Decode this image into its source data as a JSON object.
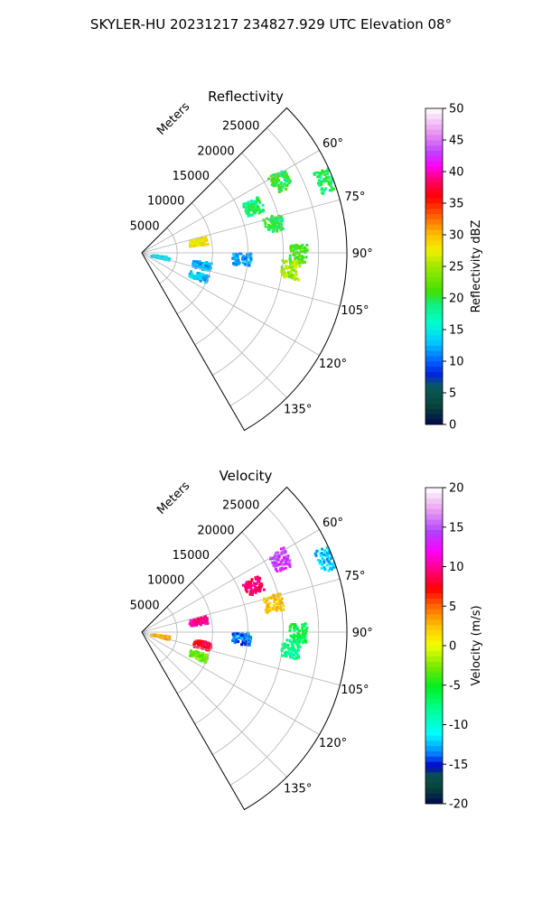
{
  "figure_title": "SKYLER-HU  20231217  234827.929 UTC Elevation 08°",
  "range_unit_label": "Meters",
  "chart_data": [
    {
      "type": "heatmap",
      "projection": "polar-sector",
      "title": "Reflectivity",
      "azimuth_range_deg": [
        45,
        150
      ],
      "azimuth_ticks": [
        "60°",
        "75°",
        "90°",
        "105°",
        "120°",
        "135°"
      ],
      "azimuth_tick_values": [
        60,
        75,
        90,
        105,
        120,
        135
      ],
      "range_ticks": [
        "5000",
        "10000",
        "15000",
        "20000",
        "25000"
      ],
      "range_tick_values": [
        5000,
        10000,
        15000,
        20000,
        25000
      ],
      "range_max": 29000,
      "grid": true,
      "colorbar": {
        "label": "Reflectivity dBZ",
        "min": 0,
        "max": 50,
        "ticks": [
          "0",
          "5",
          "10",
          "15",
          "20",
          "25",
          "30",
          "35",
          "40",
          "45",
          "50"
        ]
      },
      "echoes": [
        {
          "az": 90,
          "r": 22000,
          "value": 21
        },
        {
          "az": 96,
          "r": 21000,
          "value": 25
        },
        {
          "az": 77,
          "r": 19000,
          "value": 20
        },
        {
          "az": 67,
          "r": 17000,
          "value": 19
        },
        {
          "az": 62,
          "r": 22000,
          "value": 20
        },
        {
          "az": 68,
          "r": 28000,
          "value": 19
        },
        {
          "az": 101,
          "r": 8500,
          "value": 12
        },
        {
          "az": 112,
          "r": 8500,
          "value": 13
        },
        {
          "az": 93,
          "r": 14000,
          "value": 12
        },
        {
          "az": 78,
          "r": 8000,
          "value": 28
        },
        {
          "az": 100,
          "r": 2500,
          "value": 14
        }
      ]
    },
    {
      "type": "heatmap",
      "projection": "polar-sector",
      "title": "Velocity",
      "azimuth_range_deg": [
        45,
        150
      ],
      "azimuth_ticks": [
        "60°",
        "75°",
        "90°",
        "105°",
        "120°",
        "135°"
      ],
      "azimuth_tick_values": [
        60,
        75,
        90,
        105,
        120,
        135
      ],
      "range_ticks": [
        "5000",
        "10000",
        "15000",
        "20000",
        "25000"
      ],
      "range_tick_values": [
        5000,
        10000,
        15000,
        20000,
        25000
      ],
      "range_max": 29000,
      "grid": true,
      "colorbar": {
        "label": "Velocity (m/s)",
        "min": -20,
        "max": 20,
        "ticks": [
          "-20",
          "-15",
          "-10",
          "-5",
          "0",
          "5",
          "10",
          "15",
          "20"
        ]
      },
      "echoes": [
        {
          "az": 90,
          "r": 22000,
          "value": -6
        },
        {
          "az": 96,
          "r": 21000,
          "value": -8
        },
        {
          "az": 77,
          "r": 19000,
          "value": 2
        },
        {
          "az": 67,
          "r": 17000,
          "value": 9
        },
        {
          "az": 62,
          "r": 22000,
          "value": 14
        },
        {
          "az": 68,
          "r": 28000,
          "value": -12
        },
        {
          "az": 101,
          "r": 8500,
          "value": 8
        },
        {
          "az": 112,
          "r": 8500,
          "value": -3
        },
        {
          "az": 93,
          "r": 14000,
          "value": -14
        },
        {
          "az": 78,
          "r": 8000,
          "value": 10
        },
        {
          "az": 100,
          "r": 2500,
          "value": 3
        }
      ]
    }
  ]
}
